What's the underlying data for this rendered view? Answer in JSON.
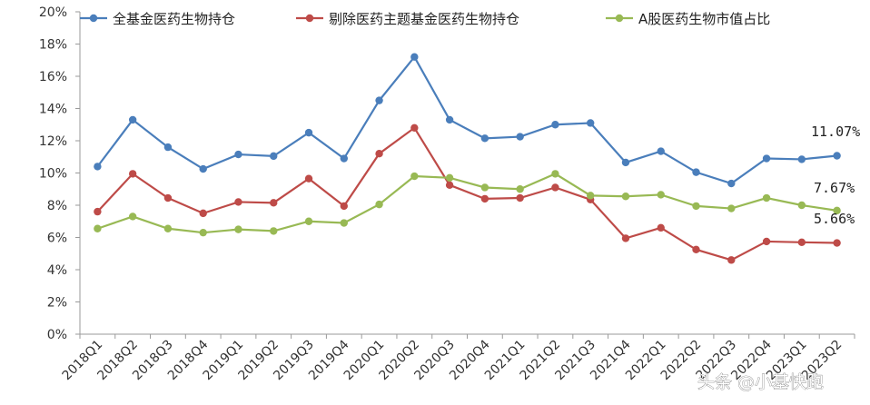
{
  "chart_data": {
    "type": "line",
    "categories": [
      "2018Q1",
      "2018Q2",
      "2018Q3",
      "2018Q4",
      "2019Q1",
      "2019Q2",
      "2019Q3",
      "2019Q4",
      "2020Q1",
      "2020Q2",
      "2020Q3",
      "2020Q4",
      "2021Q1",
      "2021Q2",
      "2021Q3",
      "2021Q4",
      "2022Q1",
      "2022Q2",
      "2022Q3",
      "2022Q4",
      "2023Q1",
      "2023Q2"
    ],
    "series": [
      {
        "name": "全基金医药生物持仓",
        "color": "#4a7ebb",
        "values": [
          10.4,
          13.3,
          11.6,
          10.25,
          11.15,
          11.05,
          12.5,
          10.9,
          14.5,
          17.2,
          13.3,
          12.15,
          12.25,
          13.0,
          13.1,
          10.65,
          11.35,
          10.05,
          9.35,
          10.9,
          10.85,
          11.07
        ]
      },
      {
        "name": "剔除医药主题基金医药生物持仓",
        "color": "#be4b48",
        "values": [
          7.6,
          9.95,
          8.45,
          7.5,
          8.2,
          8.15,
          9.65,
          7.95,
          11.2,
          12.8,
          9.25,
          8.4,
          8.45,
          9.1,
          8.35,
          5.95,
          6.6,
          5.25,
          4.6,
          5.75,
          5.7,
          5.66
        ]
      },
      {
        "name": "A股医药生物市值占比",
        "color": "#98b954",
        "values": [
          6.55,
          7.3,
          6.55,
          6.3,
          6.5,
          6.4,
          7.0,
          6.9,
          8.05,
          9.8,
          9.7,
          9.1,
          9.0,
          9.95,
          8.6,
          8.55,
          8.65,
          7.95,
          7.8,
          8.45,
          8.0,
          7.67
        ]
      }
    ],
    "y_ticks": [
      "0%",
      "2%",
      "4%",
      "6%",
      "8%",
      "10%",
      "12%",
      "14%",
      "16%",
      "18%",
      "20%"
    ],
    "ylim": [
      0,
      20
    ],
    "end_labels": [
      "11.07%",
      "7.67%",
      "5.66%"
    ],
    "grid": false,
    "legend": "top",
    "watermark": "头条 @小基快跑"
  }
}
